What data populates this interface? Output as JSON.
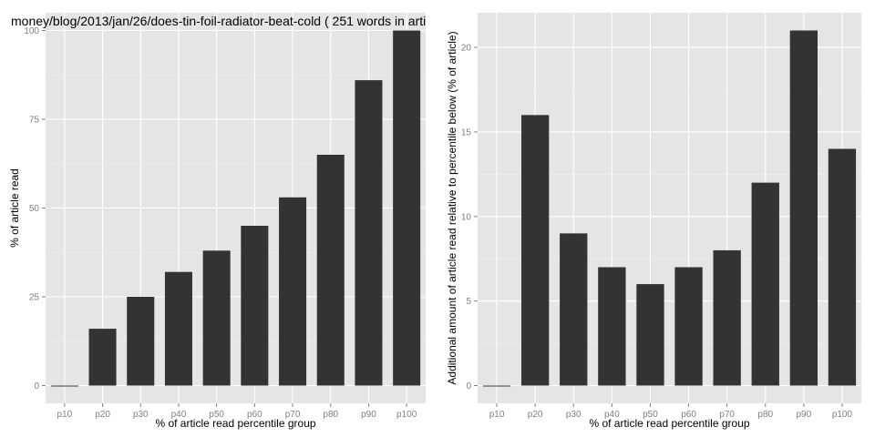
{
  "chart_data": [
    {
      "type": "bar",
      "title": "money/blog/2013/jan/26/does-tin-foil-radiator-beat-cold ( 251 words in arti",
      "xlabel": "% of article read percentile group",
      "ylabel": "% of article read",
      "categories": [
        "p10",
        "p20",
        "p30",
        "p40",
        "p50",
        "p60",
        "p70",
        "p80",
        "p90",
        "p100"
      ],
      "values": [
        0,
        16,
        25,
        32,
        38,
        45,
        53,
        65,
        86,
        100
      ],
      "ylim": [
        -5,
        105
      ],
      "yticks": [
        0,
        25,
        50,
        75,
        100
      ],
      "grid": true,
      "legend": "none"
    },
    {
      "type": "bar",
      "title": "",
      "xlabel": "% of article read percentile group",
      "ylabel": "Additional amount of article read relative to percentile below (% of article)",
      "categories": [
        "p10",
        "p20",
        "p30",
        "p40",
        "p50",
        "p60",
        "p70",
        "p80",
        "p90",
        "p100"
      ],
      "values": [
        0,
        16,
        9,
        7,
        6,
        7,
        8,
        12,
        21,
        14
      ],
      "ylim": [
        -1.05,
        22.05
      ],
      "yticks": [
        0,
        5,
        10,
        15,
        20
      ],
      "grid": true,
      "legend": "none"
    }
  ]
}
